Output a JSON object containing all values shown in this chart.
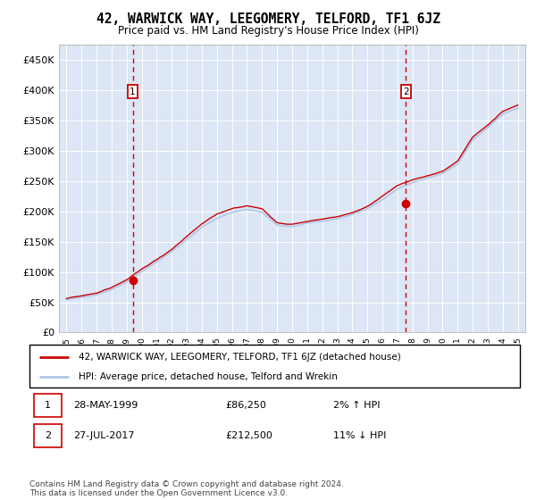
{
  "title": "42, WARWICK WAY, LEEGOMERY, TELFORD, TF1 6JZ",
  "subtitle": "Price paid vs. HM Land Registry's House Price Index (HPI)",
  "ylabel_ticks": [
    "£0",
    "£50K",
    "£100K",
    "£150K",
    "£200K",
    "£250K",
    "£300K",
    "£350K",
    "£400K",
    "£450K"
  ],
  "ytick_values": [
    0,
    50000,
    100000,
    150000,
    200000,
    250000,
    300000,
    350000,
    400000,
    450000
  ],
  "ylim": [
    0,
    475000
  ],
  "xlim_start": 1994.5,
  "xlim_end": 2025.5,
  "background_color": "#dce6f5",
  "hpi_color": "#aec6e8",
  "price_color": "#cc0000",
  "marker_color": "#cc0000",
  "sale1_x": 1999.4,
  "sale1_y": 86250,
  "sale1_label": "1",
  "sale2_x": 2017.57,
  "sale2_y": 212500,
  "sale2_label": "2",
  "vline_color": "#cc0000",
  "legend_line1": "42, WARWICK WAY, LEEGOMERY, TELFORD, TF1 6JZ (detached house)",
  "legend_line2": "HPI: Average price, detached house, Telford and Wrekin",
  "xtick_years": [
    1995,
    1996,
    1997,
    1998,
    1999,
    2000,
    2001,
    2002,
    2003,
    2004,
    2005,
    2006,
    2007,
    2008,
    2009,
    2010,
    2011,
    2012,
    2013,
    2014,
    2015,
    2016,
    2017,
    2018,
    2019,
    2020,
    2021,
    2022,
    2023,
    2024,
    2025
  ],
  "hpi_anchors_x": [
    1995,
    1996,
    1997,
    1998,
    1999,
    2000,
    2001,
    2002,
    2003,
    2004,
    2005,
    2006,
    2007,
    2008,
    2009,
    2010,
    2011,
    2012,
    2013,
    2014,
    2015,
    2016,
    2017,
    2018,
    2019,
    2020,
    2021,
    2022,
    2023,
    2024,
    2025
  ],
  "hpi_anchors_y": [
    54000,
    58000,
    63000,
    72000,
    85000,
    102000,
    118000,
    135000,
    155000,
    175000,
    190000,
    200000,
    205000,
    200000,
    178000,
    176000,
    181000,
    184000,
    188000,
    195000,
    205000,
    220000,
    238000,
    248000,
    255000,
    262000,
    278000,
    318000,
    338000,
    360000,
    370000
  ],
  "footer_text": "Contains HM Land Registry data © Crown copyright and database right 2024.\nThis data is licensed under the Open Government Licence v3.0."
}
